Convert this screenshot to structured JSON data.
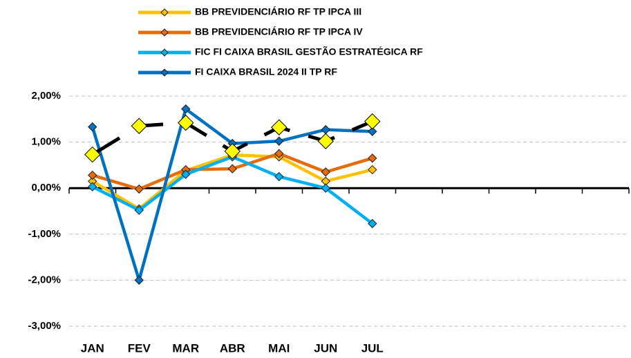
{
  "chart_data": {
    "type": "line",
    "categories": [
      "JAN",
      "FEV",
      "MAR",
      "ABR",
      "MAI",
      "JUN",
      "JUL",
      null,
      null,
      null,
      null,
      null
    ],
    "series": [
      {
        "name": "BB PREVIDENCIÁRIO RF TP IPCA III",
        "color": "#ffc000",
        "values": [
          0.15,
          -0.45,
          0.38,
          0.72,
          0.68,
          0.15,
          0.4,
          null,
          null,
          null,
          null,
          null
        ]
      },
      {
        "name": "BB PREVIDENCIÁRIO RF TP IPCA IV",
        "color": "#e46c0a",
        "values": [
          0.28,
          -0.02,
          0.4,
          0.42,
          0.75,
          0.35,
          0.65,
          null,
          null,
          null,
          null,
          null
        ]
      },
      {
        "name": "FIC FI CAIXA BRASIL GESTÃO ESTRATÉGICA RF",
        "color": "#00b0f0",
        "values": [
          0.03,
          -0.48,
          0.3,
          0.68,
          0.25,
          0.0,
          -0.77,
          null,
          null,
          null,
          null,
          null
        ]
      },
      {
        "name": "FI CAIXA BRASIL 2024 II TP RF",
        "color": "#0070c0",
        "values": [
          1.33,
          -2.0,
          1.72,
          0.97,
          1.02,
          1.27,
          1.23,
          null,
          null,
          null,
          null,
          null
        ]
      },
      {
        "color": "#000000",
        "marker_color": "#ffff00",
        "values": [
          0.73,
          1.35,
          1.42,
          0.8,
          1.32,
          1.02,
          1.45,
          null,
          null,
          null,
          null,
          null
        ]
      }
    ],
    "ylim": [
      -3,
      2
    ],
    "yticks": [
      {
        "value": 2,
        "label": "2,00%"
      },
      {
        "value": 1,
        "label": "1,00%"
      },
      {
        "value": 0,
        "label": "0,00%"
      },
      {
        "value": -1,
        "label": "-1,00%"
      },
      {
        "value": -2,
        "label": "-2,00%"
      },
      {
        "value": -3,
        "label": "-3,00%"
      }
    ],
    "grid": true
  }
}
